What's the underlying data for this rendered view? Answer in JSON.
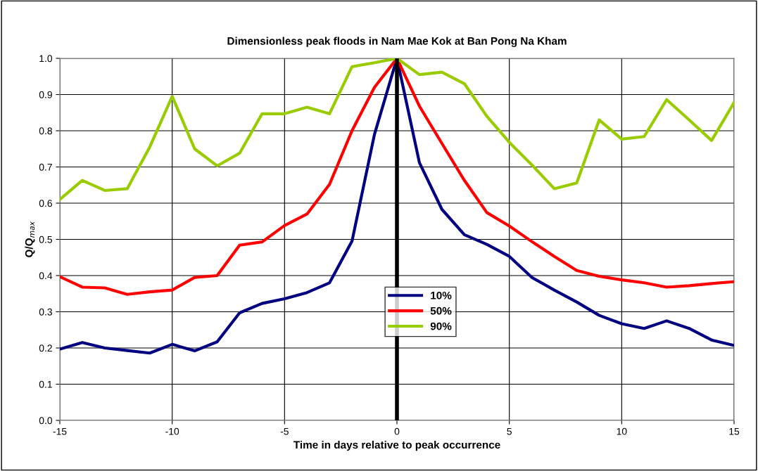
{
  "chart_data": {
    "type": "line",
    "title": "Dimensionless peak floods in Nam Mae Kok at Ban Pong Na Kham",
    "xlabel": "Time in days relative to peak occurrence",
    "ylabel": "Q/Q$_{max}$",
    "x": [
      -15,
      -14,
      -13,
      -12,
      -11,
      -10,
      -9,
      -8,
      -7,
      -6,
      -5,
      -4,
      -3,
      -2,
      -1,
      0,
      1,
      2,
      3,
      4,
      5,
      6,
      7,
      8,
      9,
      10,
      11,
      12,
      13,
      14,
      15
    ],
    "series": [
      {
        "name": "10%",
        "color": "#000080",
        "values": [
          0.197,
          0.215,
          0.2,
          0.193,
          0.186,
          0.21,
          0.192,
          0.217,
          0.297,
          0.323,
          0.336,
          0.353,
          0.38,
          0.495,
          0.79,
          1.0,
          0.712,
          0.583,
          0.513,
          0.486,
          0.453,
          0.395,
          0.36,
          0.327,
          0.29,
          0.267,
          0.254,
          0.275,
          0.254,
          0.222,
          0.207
        ]
      },
      {
        "name": "50%",
        "color": "#ff0000",
        "values": [
          0.397,
          0.368,
          0.366,
          0.348,
          0.355,
          0.36,
          0.395,
          0.4,
          0.484,
          0.493,
          0.538,
          0.57,
          0.652,
          0.8,
          0.92,
          1.0,
          0.868,
          0.765,
          0.663,
          0.574,
          0.537,
          0.494,
          0.453,
          0.414,
          0.398,
          0.388,
          0.38,
          0.368,
          0.372,
          0.378,
          0.383
        ]
      },
      {
        "name": "90%",
        "color": "#99cc00",
        "values": [
          0.61,
          0.663,
          0.635,
          0.64,
          0.755,
          0.895,
          0.75,
          0.703,
          0.738,
          0.847,
          0.847,
          0.865,
          0.847,
          0.977,
          0.988,
          1.0,
          0.955,
          0.962,
          0.93,
          0.84,
          0.768,
          0.706,
          0.64,
          0.656,
          0.83,
          0.777,
          0.784,
          0.886,
          0.83,
          0.773,
          0.878
        ]
      }
    ],
    "xlim": [
      -15,
      15
    ],
    "xticks": [
      -15,
      -10,
      -5,
      0,
      5,
      10,
      15
    ],
    "ylim": [
      0,
      1.0
    ],
    "yticks": [
      {
        "value": 0,
        "label": "0.0"
      },
      {
        "value": 0.1,
        "label": "0.1"
      },
      {
        "value": 0.2,
        "label": "0.2"
      },
      {
        "value": 0.3,
        "label": "0.3"
      },
      {
        "value": 0.4,
        "label": "0.4"
      },
      {
        "value": 0.5,
        "label": "0.5"
      },
      {
        "value": 0.6,
        "label": "0.6"
      },
      {
        "value": 0.7,
        "label": "0.7"
      },
      {
        "value": 0.8,
        "label": "0.8"
      },
      {
        "value": 0.9,
        "label": "0.9"
      },
      {
        "value": 1.0,
        "label": "1.0"
      }
    ],
    "ref_lines": [
      {
        "axis": "x",
        "value": 0,
        "color": "#000000"
      }
    ],
    "grid": true,
    "legend": "center",
    "marker": "none",
    "line_style": "solid"
  }
}
